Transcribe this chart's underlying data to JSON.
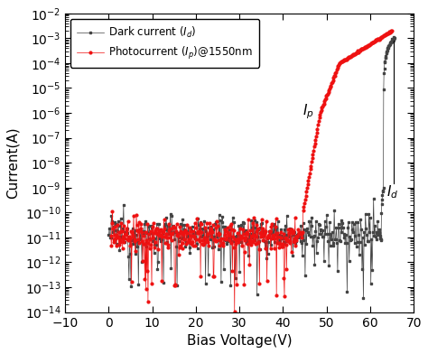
{
  "title": "",
  "xlabel": "Bias Voltage(V)",
  "ylabel": "Current(A)",
  "xlim": [
    -10,
    70
  ],
  "ylim_log": [
    -14,
    -2
  ],
  "dark_color": "#444444",
  "photo_color": "#EE1111",
  "legend_dark": "Dark current ($I_d$)",
  "legend_photo": "Photocurrent ($I_p$)@1550nm",
  "annot_Ip": "$I_p$",
  "annot_Id": "$I_d$",
  "figsize": [
    4.74,
    3.92
  ],
  "dpi": 100
}
